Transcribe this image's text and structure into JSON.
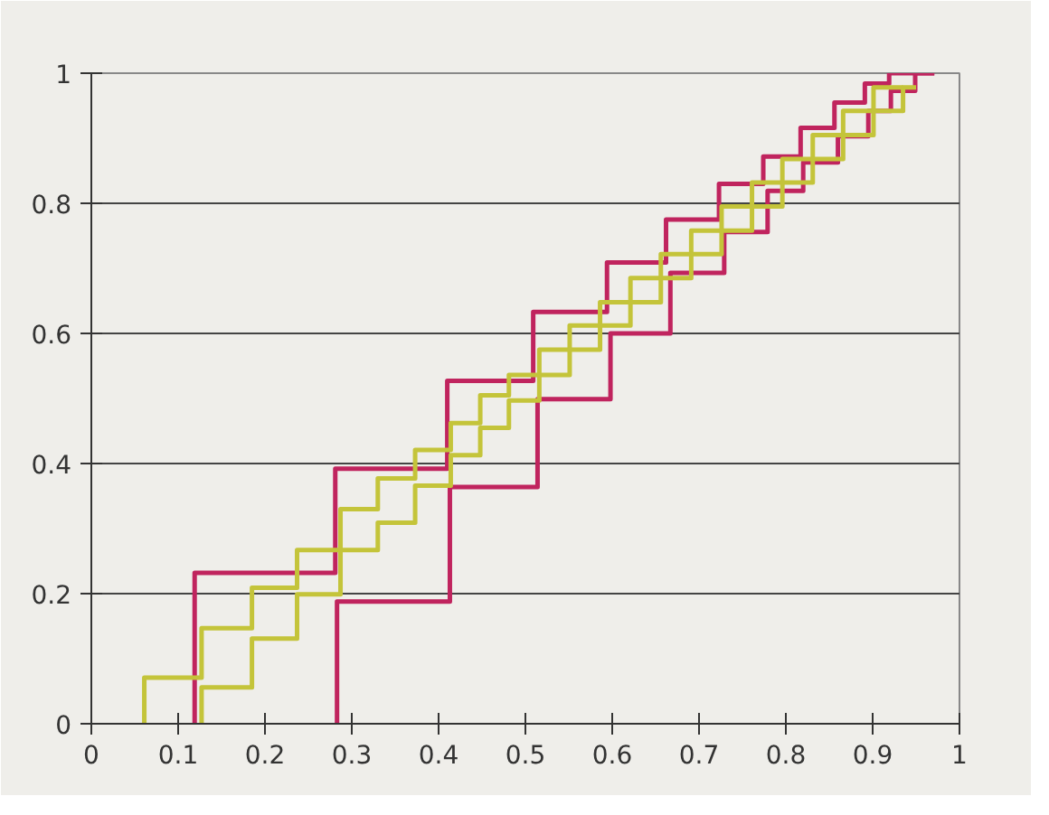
{
  "chart_data": {
    "type": "step",
    "xlim": [
      0,
      1
    ],
    "ylim": [
      0,
      1
    ],
    "xticks": [
      0,
      0.1,
      0.2,
      0.3,
      0.4,
      0.5,
      0.6,
      0.7,
      0.8,
      0.9,
      1
    ],
    "yticks": [
      0,
      0.2,
      0.4,
      0.6,
      0.8,
      1
    ],
    "grid": "y",
    "marker": "none",
    "line_style": "solid",
    "series": [
      {
        "color": "#c0245e",
        "x": [
          0.119,
          0.119,
          0.281,
          0.41,
          0.509,
          0.594,
          0.662,
          0.723,
          0.774,
          0.817,
          0.856,
          0.891,
          0.919,
          0.971
        ],
        "values": [
          0,
          0.232,
          0.392,
          0.527,
          0.633,
          0.709,
          0.775,
          0.83,
          0.872,
          0.916,
          0.955,
          0.984,
          1.0,
          1.0
        ]
      },
      {
        "color": "#c0245e",
        "x": [
          0.283,
          0.283,
          0.413,
          0.514,
          0.598,
          0.667,
          0.729,
          0.779,
          0.82,
          0.86,
          0.895,
          0.921,
          0.949,
          0.971
        ],
        "values": [
          0,
          0.188,
          0.364,
          0.499,
          0.6,
          0.693,
          0.756,
          0.819,
          0.863,
          0.903,
          0.942,
          0.973,
          1.0,
          1.0
        ]
      },
      {
        "color": "#c4c43a",
        "x": [
          0.061,
          0.061,
          0.127,
          0.185,
          0.237,
          0.287,
          0.33,
          0.373,
          0.414,
          0.448,
          0.481,
          0.516,
          0.551,
          0.586,
          0.621,
          0.656,
          0.691,
          0.726,
          0.761,
          0.796,
          0.831,
          0.866,
          0.901,
          0.935
        ],
        "values": [
          0,
          0.071,
          0.147,
          0.209,
          0.267,
          0.33,
          0.377,
          0.421,
          0.462,
          0.505,
          0.536,
          0.575,
          0.612,
          0.648,
          0.685,
          0.722,
          0.758,
          0.795,
          0.832,
          0.868,
          0.905,
          0.942,
          0.978,
          0.978
        ]
      },
      {
        "color": "#c4c43a",
        "x": [
          0.127,
          0.127,
          0.185,
          0.237,
          0.287,
          0.33,
          0.373,
          0.414,
          0.448,
          0.481,
          0.516,
          0.551,
          0.586,
          0.621,
          0.656,
          0.691,
          0.726,
          0.761,
          0.796,
          0.831,
          0.866,
          0.901,
          0.935,
          0.95
        ],
        "values": [
          0,
          0.056,
          0.131,
          0.199,
          0.267,
          0.309,
          0.366,
          0.413,
          0.455,
          0.497,
          0.536,
          0.575,
          0.612,
          0.648,
          0.685,
          0.722,
          0.758,
          0.795,
          0.832,
          0.868,
          0.905,
          0.942,
          0.978,
          0.978
        ]
      }
    ]
  }
}
